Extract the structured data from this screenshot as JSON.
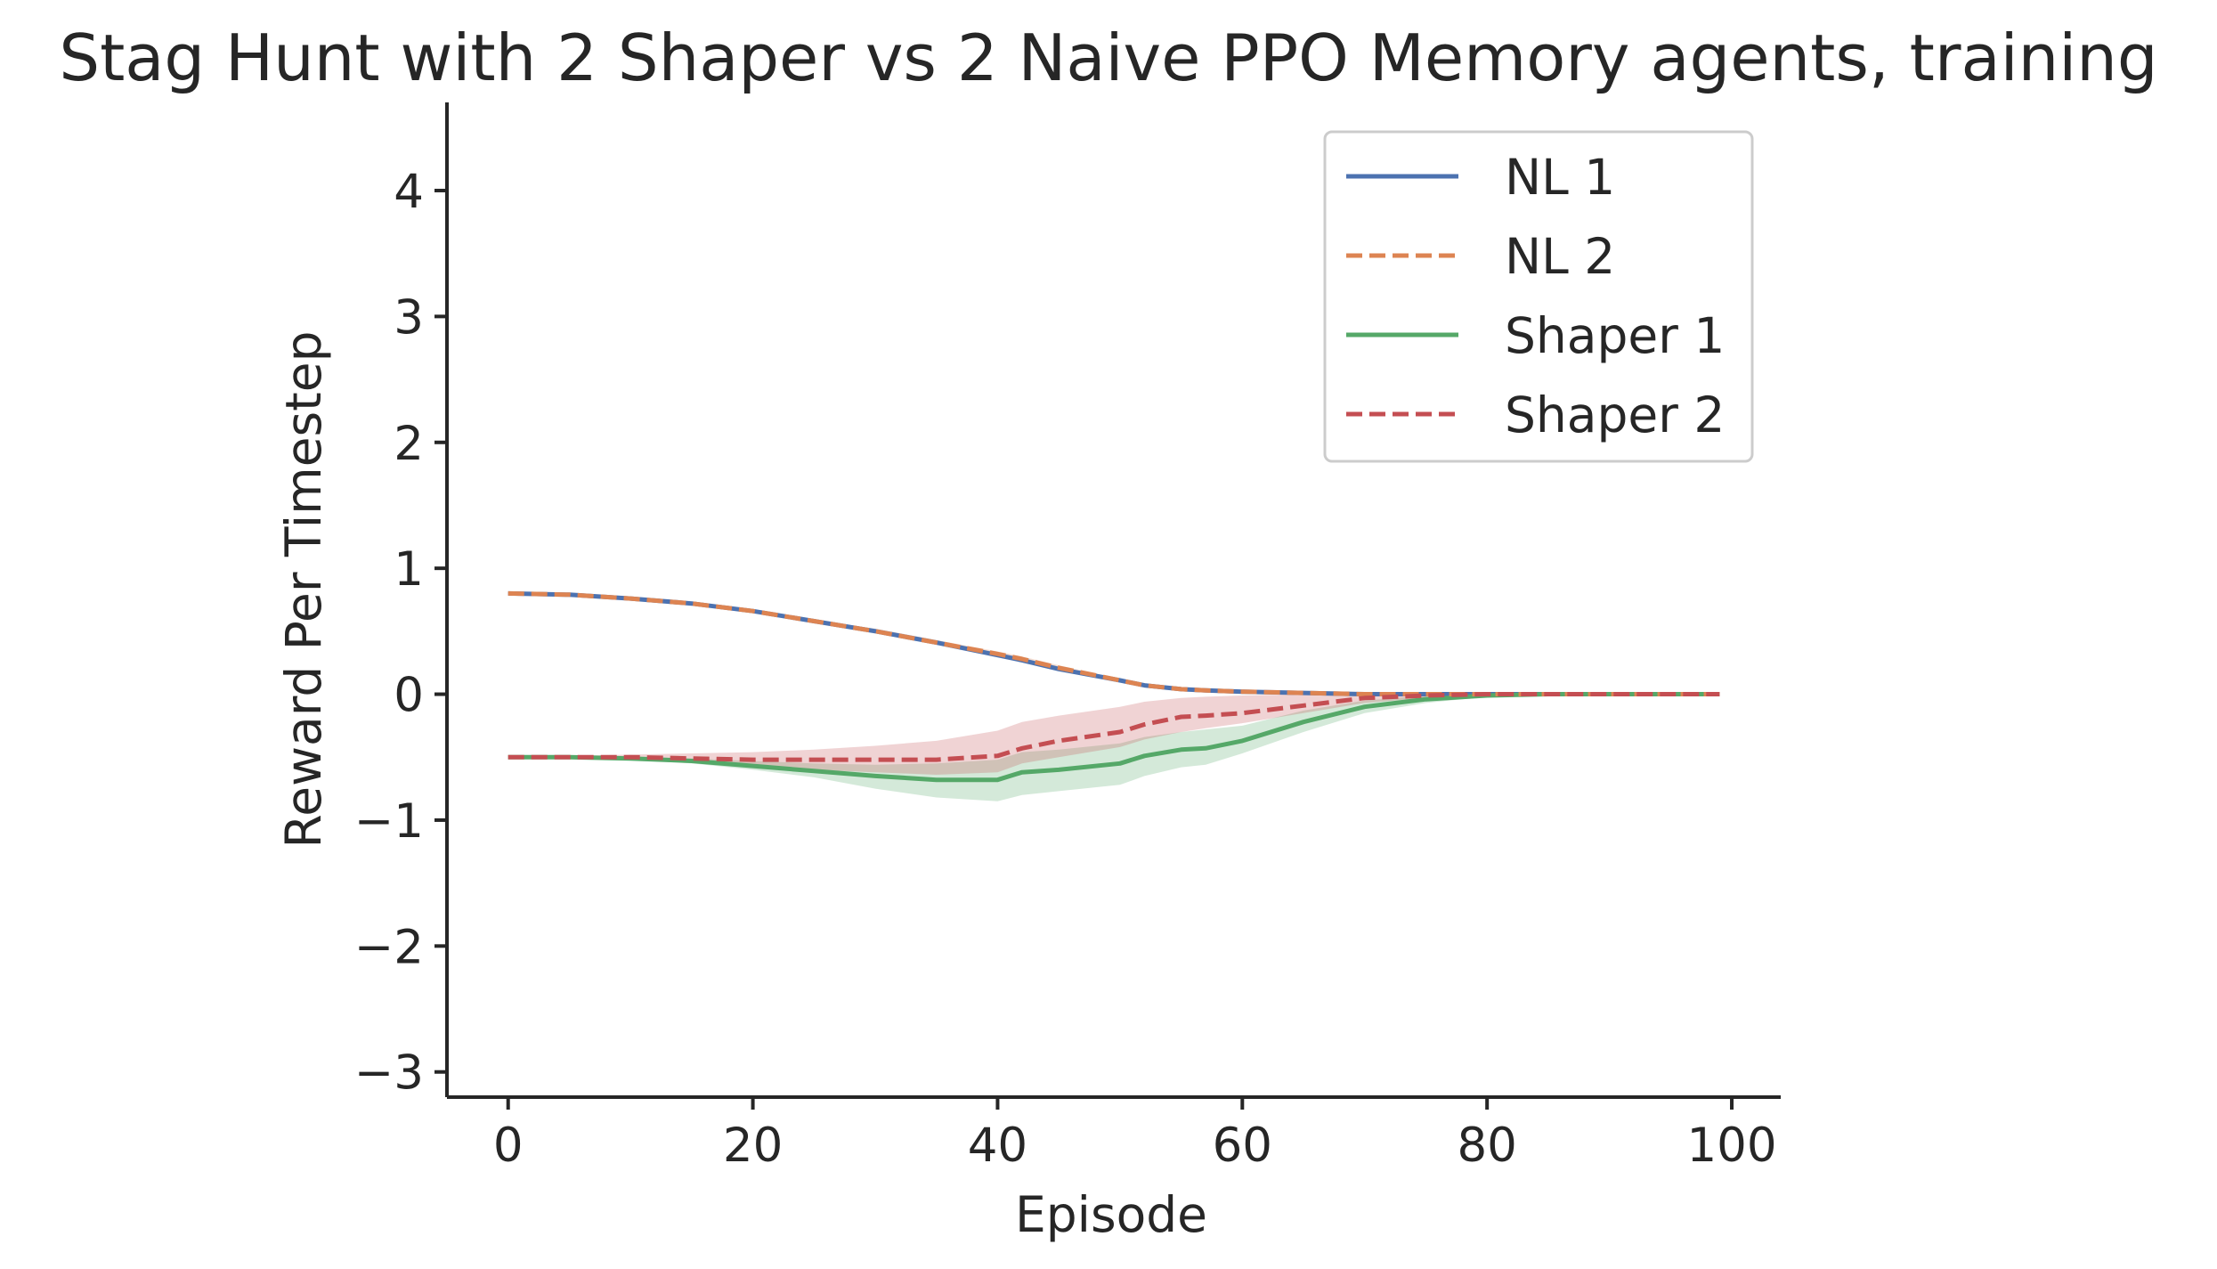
{
  "chart_data": {
    "type": "line",
    "title": "Stag Hunt with 2 Shaper vs 2 Naive PPO Memory agents, training",
    "xlabel": "Episode",
    "ylabel": "Reward Per Timestep",
    "xlim": [
      -5,
      104
    ],
    "ylim": [
      -3.2,
      4.7
    ],
    "xticks": [
      0,
      20,
      40,
      60,
      80,
      100
    ],
    "yticks": [
      -3,
      -2,
      -1,
      0,
      1,
      2,
      3,
      4
    ],
    "xtick_labels": [
      "0",
      "20",
      "40",
      "60",
      "80",
      "100"
    ],
    "ytick_labels": [
      "−3",
      "−2",
      "−1",
      "0",
      "1",
      "2",
      "3",
      "4"
    ],
    "grid": false,
    "legend_position": "upper-right",
    "x": [
      0,
      5,
      10,
      15,
      20,
      25,
      30,
      35,
      40,
      42,
      45,
      50,
      52,
      55,
      57,
      60,
      65,
      70,
      75,
      80,
      85,
      90,
      95,
      99
    ],
    "series": [
      {
        "name": "NL 1",
        "color": "#4C72B0",
        "dash": "solid",
        "values": [
          0.8,
          0.79,
          0.76,
          0.72,
          0.66,
          0.58,
          0.5,
          0.41,
          0.31,
          0.27,
          0.2,
          0.11,
          0.07,
          0.04,
          0.03,
          0.02,
          0.01,
          0.0,
          0.0,
          0.0,
          0.0,
          0.0,
          0.0,
          0.0
        ],
        "band_low": [
          0.79,
          0.78,
          0.75,
          0.71,
          0.65,
          0.57,
          0.49,
          0.4,
          0.3,
          0.26,
          0.19,
          0.1,
          0.06,
          0.03,
          0.02,
          0.01,
          0.0,
          0.0,
          0.0,
          0.0,
          0.0,
          0.0,
          0.0,
          0.0
        ],
        "band_high": [
          0.81,
          0.8,
          0.77,
          0.73,
          0.67,
          0.59,
          0.52,
          0.43,
          0.33,
          0.29,
          0.22,
          0.12,
          0.08,
          0.05,
          0.04,
          0.03,
          0.02,
          0.01,
          0.0,
          0.0,
          0.0,
          0.0,
          0.0,
          0.0
        ]
      },
      {
        "name": "NL 2",
        "color": "#DD8452",
        "dash": "dashed",
        "values": [
          0.8,
          0.79,
          0.76,
          0.72,
          0.66,
          0.58,
          0.5,
          0.41,
          0.32,
          0.28,
          0.21,
          0.11,
          0.07,
          0.04,
          0.03,
          0.02,
          0.01,
          0.0,
          0.0,
          0.0,
          0.0,
          0.0,
          0.0,
          0.0
        ],
        "band_low": [
          0.79,
          0.78,
          0.75,
          0.71,
          0.65,
          0.57,
          0.49,
          0.4,
          0.31,
          0.27,
          0.2,
          0.1,
          0.06,
          0.03,
          0.02,
          0.01,
          0.0,
          0.0,
          0.0,
          0.0,
          0.0,
          0.0,
          0.0,
          0.0
        ],
        "band_high": [
          0.81,
          0.8,
          0.77,
          0.73,
          0.67,
          0.59,
          0.52,
          0.43,
          0.34,
          0.3,
          0.23,
          0.12,
          0.08,
          0.05,
          0.04,
          0.03,
          0.02,
          0.01,
          0.0,
          0.0,
          0.0,
          0.0,
          0.0,
          0.0
        ]
      },
      {
        "name": "Shaper 1",
        "color": "#55A868",
        "dash": "solid",
        "values": [
          -0.5,
          -0.5,
          -0.51,
          -0.53,
          -0.57,
          -0.61,
          -0.65,
          -0.68,
          -0.68,
          -0.62,
          -0.6,
          -0.55,
          -0.49,
          -0.44,
          -0.43,
          -0.37,
          -0.22,
          -0.1,
          -0.04,
          -0.01,
          0.0,
          0.0,
          0.0,
          0.0
        ],
        "band_low": [
          -0.5,
          -0.51,
          -0.52,
          -0.55,
          -0.6,
          -0.66,
          -0.75,
          -0.82,
          -0.85,
          -0.8,
          -0.77,
          -0.72,
          -0.65,
          -0.58,
          -0.56,
          -0.47,
          -0.3,
          -0.15,
          -0.07,
          -0.02,
          0.0,
          0.0,
          0.0,
          0.0
        ],
        "band_high": [
          -0.5,
          -0.49,
          -0.5,
          -0.51,
          -0.53,
          -0.55,
          -0.56,
          -0.55,
          -0.52,
          -0.46,
          -0.44,
          -0.39,
          -0.34,
          -0.3,
          -0.28,
          -0.25,
          -0.13,
          -0.05,
          -0.01,
          0.0,
          0.0,
          0.0,
          0.0,
          0.0
        ]
      },
      {
        "name": "Shaper 2",
        "color": "#C44E52",
        "dash": "dashed",
        "values": [
          -0.5,
          -0.5,
          -0.5,
          -0.51,
          -0.52,
          -0.52,
          -0.52,
          -0.52,
          -0.49,
          -0.43,
          -0.37,
          -0.3,
          -0.24,
          -0.18,
          -0.17,
          -0.15,
          -0.09,
          -0.03,
          -0.01,
          0.0,
          0.0,
          0.0,
          0.0,
          0.0
        ],
        "band_low": [
          -0.5,
          -0.51,
          -0.52,
          -0.54,
          -0.58,
          -0.6,
          -0.62,
          -0.64,
          -0.62,
          -0.55,
          -0.5,
          -0.42,
          -0.36,
          -0.3,
          -0.27,
          -0.23,
          -0.15,
          -0.07,
          -0.03,
          -0.01,
          0.0,
          0.0,
          0.0,
          0.0
        ],
        "band_high": [
          -0.5,
          -0.49,
          -0.48,
          -0.47,
          -0.46,
          -0.44,
          -0.41,
          -0.37,
          -0.29,
          -0.22,
          -0.17,
          -0.1,
          -0.06,
          -0.03,
          -0.02,
          -0.01,
          0.0,
          0.0,
          0.0,
          0.0,
          0.0,
          0.0,
          0.0,
          0.0
        ]
      }
    ]
  }
}
